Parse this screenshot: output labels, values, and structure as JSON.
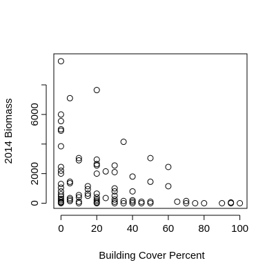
{
  "chart_data": {
    "type": "scatter",
    "title": "",
    "xlabel": "Building Cover Percent",
    "ylabel": "2014 Biomass",
    "xlim": [
      -4,
      104
    ],
    "ylim": [
      -350,
      10100
    ],
    "xticks": [
      0,
      20,
      40,
      60,
      80,
      100
    ],
    "yticks": [
      0,
      2000,
      4000,
      6000,
      8000
    ],
    "yticks_labeled": [
      0,
      2000,
      6000
    ],
    "grid": false,
    "legend": "none",
    "series": [
      {
        "points": [
          [
            0,
            9600
          ],
          [
            0,
            6000
          ],
          [
            0,
            5550
          ],
          [
            0,
            5000
          ],
          [
            0,
            4900
          ],
          [
            0,
            3850
          ],
          [
            0,
            2450
          ],
          [
            0,
            2200
          ],
          [
            0,
            2000
          ],
          [
            0,
            1300
          ],
          [
            0,
            1050
          ],
          [
            0,
            800
          ],
          [
            0,
            600
          ],
          [
            0,
            450
          ],
          [
            0,
            300
          ],
          [
            0,
            200
          ],
          [
            0,
            100
          ],
          [
            0,
            50
          ],
          [
            0,
            0
          ],
          [
            5,
            7100
          ],
          [
            5,
            1450
          ],
          [
            5,
            1350
          ],
          [
            5,
            350
          ],
          [
            5,
            250
          ],
          [
            5,
            150
          ],
          [
            10,
            3050
          ],
          [
            10,
            2900
          ],
          [
            10,
            550
          ],
          [
            10,
            400
          ],
          [
            10,
            100
          ],
          [
            10,
            0
          ],
          [
            15,
            1150
          ],
          [
            15,
            950
          ],
          [
            15,
            650
          ],
          [
            15,
            500
          ],
          [
            20,
            7650
          ],
          [
            20,
            2950
          ],
          [
            20,
            2650
          ],
          [
            20,
            2550
          ],
          [
            20,
            2000
          ],
          [
            20,
            650
          ],
          [
            20,
            400
          ],
          [
            20,
            250
          ],
          [
            20,
            150
          ],
          [
            20,
            50
          ],
          [
            20,
            0
          ],
          [
            25,
            2150
          ],
          [
            25,
            350
          ],
          [
            30,
            2550
          ],
          [
            30,
            2100
          ],
          [
            30,
            1000
          ],
          [
            30,
            800
          ],
          [
            30,
            500
          ],
          [
            30,
            250
          ],
          [
            30,
            100
          ],
          [
            30,
            0
          ],
          [
            35,
            4150
          ],
          [
            35,
            150
          ],
          [
            35,
            0
          ],
          [
            40,
            1800
          ],
          [
            40,
            800
          ],
          [
            40,
            200
          ],
          [
            40,
            100
          ],
          [
            40,
            0
          ],
          [
            45,
            100
          ],
          [
            45,
            0
          ],
          [
            50,
            3050
          ],
          [
            50,
            1450
          ],
          [
            50,
            100
          ],
          [
            50,
            0
          ],
          [
            60,
            2450
          ],
          [
            60,
            1150
          ],
          [
            65,
            100
          ],
          [
            70,
            150
          ],
          [
            70,
            0
          ],
          [
            75,
            0
          ],
          [
            80,
            0
          ],
          [
            90,
            0
          ],
          [
            95,
            50
          ],
          [
            95,
            0
          ],
          [
            100,
            0
          ]
        ]
      }
    ]
  }
}
